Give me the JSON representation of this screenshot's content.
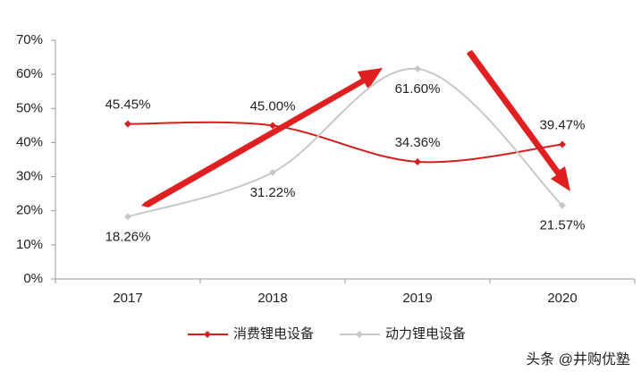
{
  "chart_data": {
    "type": "line",
    "categories": [
      "2017",
      "2018",
      "2019",
      "2020"
    ],
    "series": [
      {
        "name": "消费锂电设备",
        "color": "#d42020",
        "values": [
          45.45,
          45.0,
          34.36,
          39.47
        ],
        "value_labels": [
          "45.45%",
          "45.00%",
          "34.36%",
          "39.47%"
        ]
      },
      {
        "name": "动力锂电设备",
        "color": "#c8c8c8",
        "values": [
          18.26,
          31.22,
          61.6,
          21.57
        ],
        "value_labels": [
          "18.26%",
          "31.22%",
          "61.60%",
          "21.57%"
        ]
      }
    ],
    "ylim": [
      0,
      70
    ],
    "yticks": [
      {
        "value": 0,
        "label": "0%"
      },
      {
        "value": 10,
        "label": "10%"
      },
      {
        "value": 20,
        "label": "20%"
      },
      {
        "value": 30,
        "label": "30%"
      },
      {
        "value": 40,
        "label": "40%"
      },
      {
        "value": 50,
        "label": "50%"
      },
      {
        "value": 60,
        "label": "60%"
      },
      {
        "value": 70,
        "label": "70%"
      }
    ],
    "watermark": "头条 @井购优塾"
  }
}
